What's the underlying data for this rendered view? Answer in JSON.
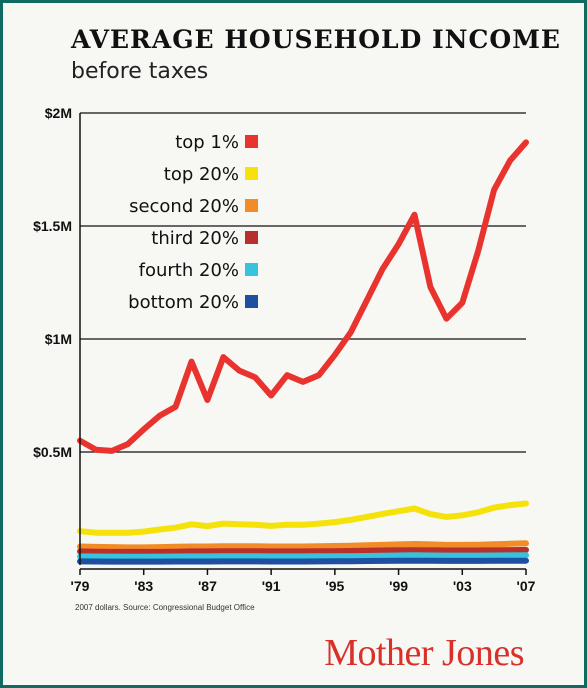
{
  "header": {
    "title": "AVERAGE HOUSEHOLD INCOME",
    "subtitle": "before taxes"
  },
  "footer": {
    "source": "2007 dollars. Source: Congressional Budget Office",
    "brand": "Mother Jones"
  },
  "chart_data": {
    "type": "line",
    "x": [
      1979,
      1980,
      1981,
      1982,
      1983,
      1984,
      1985,
      1986,
      1987,
      1988,
      1989,
      1990,
      1991,
      1992,
      1993,
      1994,
      1995,
      1996,
      1997,
      1998,
      1999,
      2000,
      2001,
      2002,
      2003,
      2004,
      2005,
      2006,
      2007
    ],
    "ylim": [
      0,
      2000000
    ],
    "yticks": [
      500000,
      1000000,
      1500000,
      2000000
    ],
    "ytick_labels": [
      "$0.5M",
      "$1M",
      "$1.5M",
      "$2M"
    ],
    "xticks": [
      1979,
      1983,
      1987,
      1991,
      1995,
      1999,
      2003,
      2007
    ],
    "xtick_labels": [
      "'79",
      "'83",
      "'87",
      "'91",
      "'95",
      "'99",
      "'03",
      "'07"
    ],
    "grid": true,
    "legend_position": "top-left",
    "series": [
      {
        "name": "top 1%",
        "color": "#e8332e",
        "values": [
          550000,
          510000,
          505000,
          535000,
          600000,
          660000,
          700000,
          900000,
          730000,
          920000,
          860000,
          830000,
          750000,
          840000,
          810000,
          840000,
          930000,
          1030000,
          1170000,
          1310000,
          1420000,
          1550000,
          1230000,
          1090000,
          1160000,
          1390000,
          1660000,
          1790000,
          1870000
        ]
      },
      {
        "name": "top 20%",
        "color": "#f4e20a",
        "values": [
          150000,
          143000,
          143000,
          143000,
          148000,
          157000,
          165000,
          180000,
          172000,
          183000,
          180000,
          178000,
          173000,
          178000,
          178000,
          183000,
          190000,
          200000,
          213000,
          226000,
          238000,
          250000,
          225000,
          213000,
          220000,
          233000,
          254000,
          265000,
          272000
        ]
      },
      {
        "name": "second 20%",
        "color": "#f28c28",
        "values": [
          82000,
          80000,
          79000,
          78000,
          78000,
          79000,
          81000,
          82000,
          82000,
          83000,
          83000,
          83000,
          82000,
          82000,
          82000,
          83000,
          84000,
          85000,
          87000,
          89000,
          91000,
          93000,
          91000,
          89000,
          89000,
          90000,
          92000,
          94000,
          96000
        ]
      },
      {
        "name": "third 20%",
        "color": "#b8302a",
        "values": [
          60000,
          59000,
          58000,
          58000,
          58000,
          58000,
          59000,
          60000,
          60000,
          61000,
          61000,
          61000,
          60000,
          60000,
          60000,
          61000,
          61000,
          62000,
          63000,
          64000,
          65000,
          66000,
          65000,
          64000,
          64000,
          64000,
          65000,
          66000,
          67000
        ]
      },
      {
        "name": "fourth 20%",
        "color": "#35c3dd",
        "values": [
          38000,
          37500,
          37000,
          36500,
          36500,
          37000,
          37500,
          38000,
          38000,
          38500,
          38500,
          38500,
          38000,
          38000,
          38000,
          38500,
          39000,
          39500,
          40000,
          41000,
          42000,
          43000,
          42000,
          41500,
          41500,
          41500,
          42000,
          42500,
          43000
        ]
      },
      {
        "name": "bottom 20%",
        "color": "#1f4fa0",
        "values": [
          16000,
          15500,
          15000,
          15000,
          15000,
          15000,
          15500,
          15500,
          15500,
          16000,
          16000,
          16000,
          15500,
          15500,
          15500,
          16000,
          16500,
          17000,
          17500,
          18000,
          18500,
          19000,
          18500,
          18000,
          18000,
          18000,
          18500,
          18500,
          19000
        ]
      }
    ]
  }
}
